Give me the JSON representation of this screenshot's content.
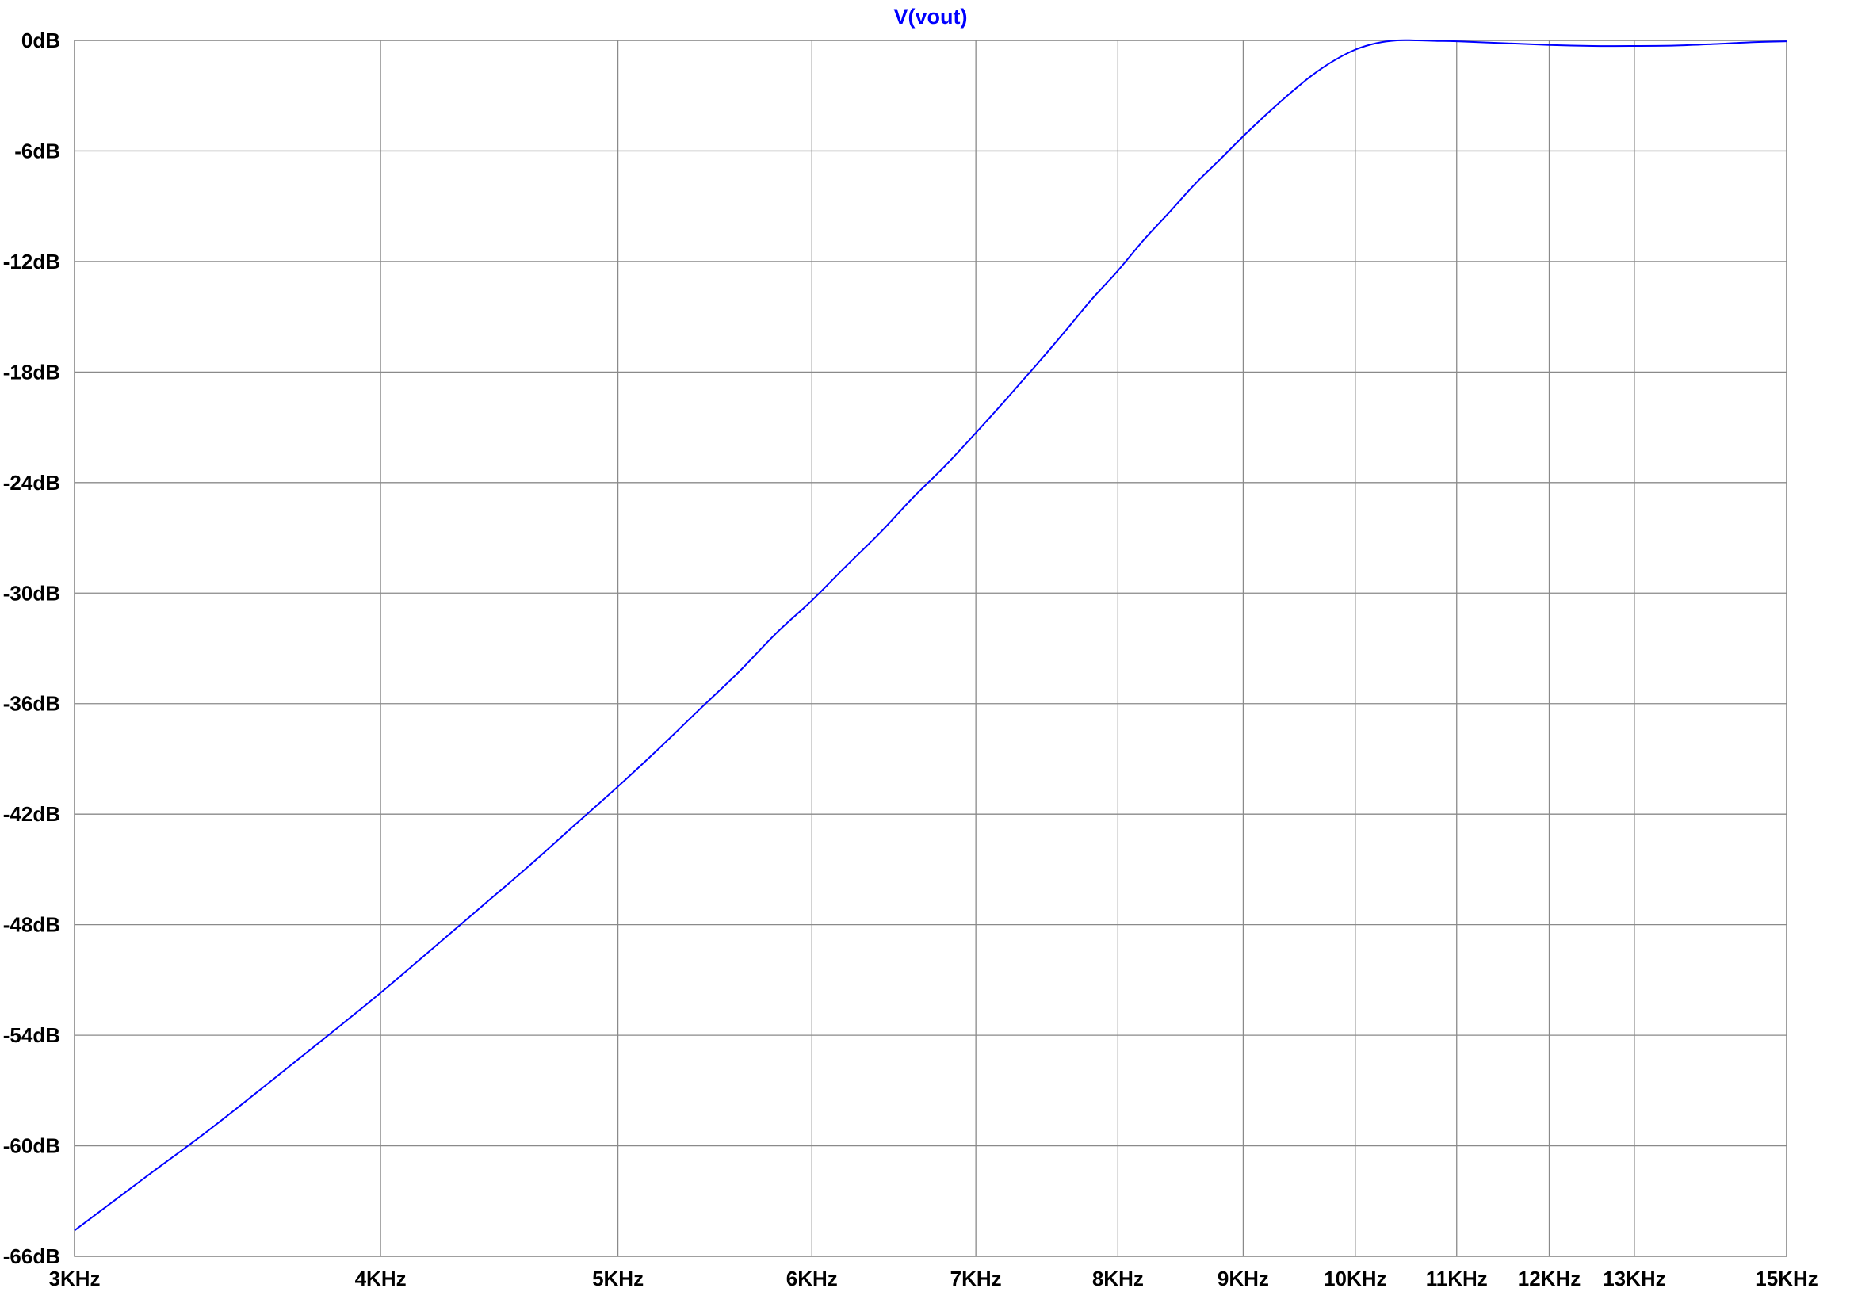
{
  "chart_data": {
    "type": "line",
    "title": "V(vout)",
    "xlabel": "",
    "ylabel": "",
    "x_scale": "log",
    "xlim": [
      3000,
      15000
    ],
    "ylim": [
      -66,
      0
    ],
    "grid": true,
    "colors": {
      "series": "#0000ff",
      "grid": "#8a8a8a",
      "axis": "#000000"
    },
    "x_ticks": [
      {
        "value": 3000,
        "label": "3KHz"
      },
      {
        "value": 4000,
        "label": "4KHz"
      },
      {
        "value": 5000,
        "label": "5KHz"
      },
      {
        "value": 6000,
        "label": "6KHz"
      },
      {
        "value": 7000,
        "label": "7KHz"
      },
      {
        "value": 8000,
        "label": "8KHz"
      },
      {
        "value": 9000,
        "label": "9KHz"
      },
      {
        "value": 10000,
        "label": "10KHz"
      },
      {
        "value": 11000,
        "label": "11KHz"
      },
      {
        "value": 12000,
        "label": "12KHz"
      },
      {
        "value": 13000,
        "label": "13KHz"
      },
      {
        "value": 15000,
        "label": "15KHz"
      }
    ],
    "y_ticks": [
      {
        "value": 0,
        "label": "0dB"
      },
      {
        "value": -6,
        "label": "-6dB"
      },
      {
        "value": -12,
        "label": "-12dB"
      },
      {
        "value": -18,
        "label": "-18dB"
      },
      {
        "value": -24,
        "label": "-24dB"
      },
      {
        "value": -30,
        "label": "-30dB"
      },
      {
        "value": -36,
        "label": "-36dB"
      },
      {
        "value": -42,
        "label": "-42dB"
      },
      {
        "value": -48,
        "label": "-48dB"
      },
      {
        "value": -54,
        "label": "-54dB"
      },
      {
        "value": -60,
        "label": "-60dB"
      },
      {
        "value": -66,
        "label": "-66dB"
      }
    ],
    "series": [
      {
        "name": "V(vout)",
        "x": [
          3000,
          3200,
          3400,
          3600,
          3800,
          4000,
          4200,
          4400,
          4600,
          4800,
          5000,
          5200,
          5400,
          5600,
          5800,
          6000,
          6200,
          6400,
          6600,
          6800,
          7000,
          7200,
          7400,
          7600,
          7800,
          8000,
          8200,
          8400,
          8600,
          8800,
          9000,
          9200,
          9400,
          9600,
          9800,
          10000,
          10200,
          10400,
          10600,
          10800,
          11000,
          11500,
          12000,
          12500,
          13000,
          13500,
          14000,
          14500,
          15000
        ],
        "y": [
          -64.6,
          -61.8,
          -59.2,
          -56.6,
          -54.1,
          -51.7,
          -49.3,
          -47.0,
          -44.8,
          -42.6,
          -40.5,
          -38.4,
          -36.3,
          -34.3,
          -32.2,
          -30.4,
          -28.5,
          -26.7,
          -24.8,
          -23.1,
          -21.3,
          -19.5,
          -17.7,
          -15.9,
          -14.1,
          -12.5,
          -10.8,
          -9.3,
          -7.8,
          -6.5,
          -5.2,
          -4.0,
          -2.9,
          -1.9,
          -1.1,
          -0.5,
          -0.15,
          0.0,
          0.0,
          -0.03,
          -0.05,
          -0.15,
          -0.25,
          -0.3,
          -0.3,
          -0.28,
          -0.2,
          -0.1,
          -0.05
        ]
      }
    ]
  }
}
